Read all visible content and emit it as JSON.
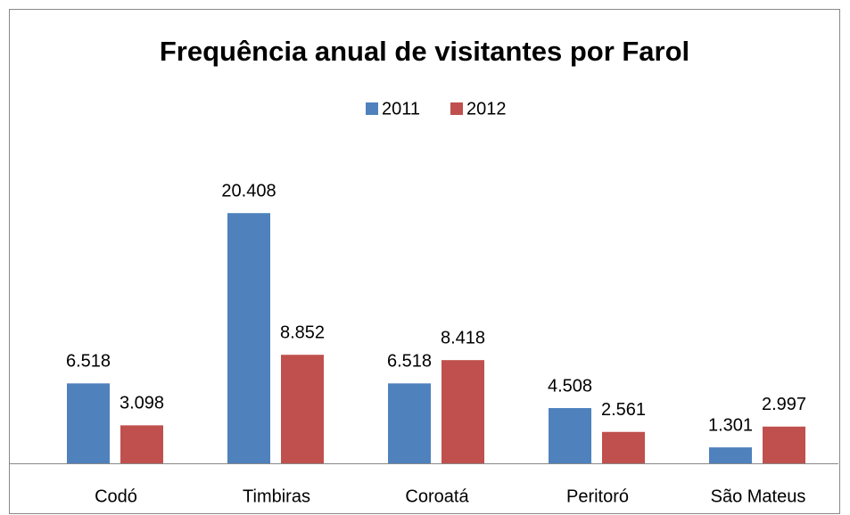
{
  "chart_data": {
    "type": "bar",
    "title": "Frequência anual de visitantes por Farol",
    "categories": [
      "Codó",
      "Timbiras",
      "Coroatá",
      "Peritoró",
      "São Mateus"
    ],
    "series": [
      {
        "name": "2011",
        "color": "#4f81bd",
        "values": [
          6518,
          20408,
          6518,
          4508,
          1301
        ],
        "value_labels": [
          "6.518",
          "20.408",
          "6.518",
          "4.508",
          "1.301"
        ]
      },
      {
        "name": "2012",
        "color": "#c0504d",
        "values": [
          3098,
          8852,
          8418,
          2561,
          2997
        ],
        "value_labels": [
          "3.098",
          "8.852",
          "8.418",
          "2.561",
          "2.997"
        ]
      }
    ],
    "ylim": [
      0,
      25000
    ],
    "legend": "top"
  }
}
